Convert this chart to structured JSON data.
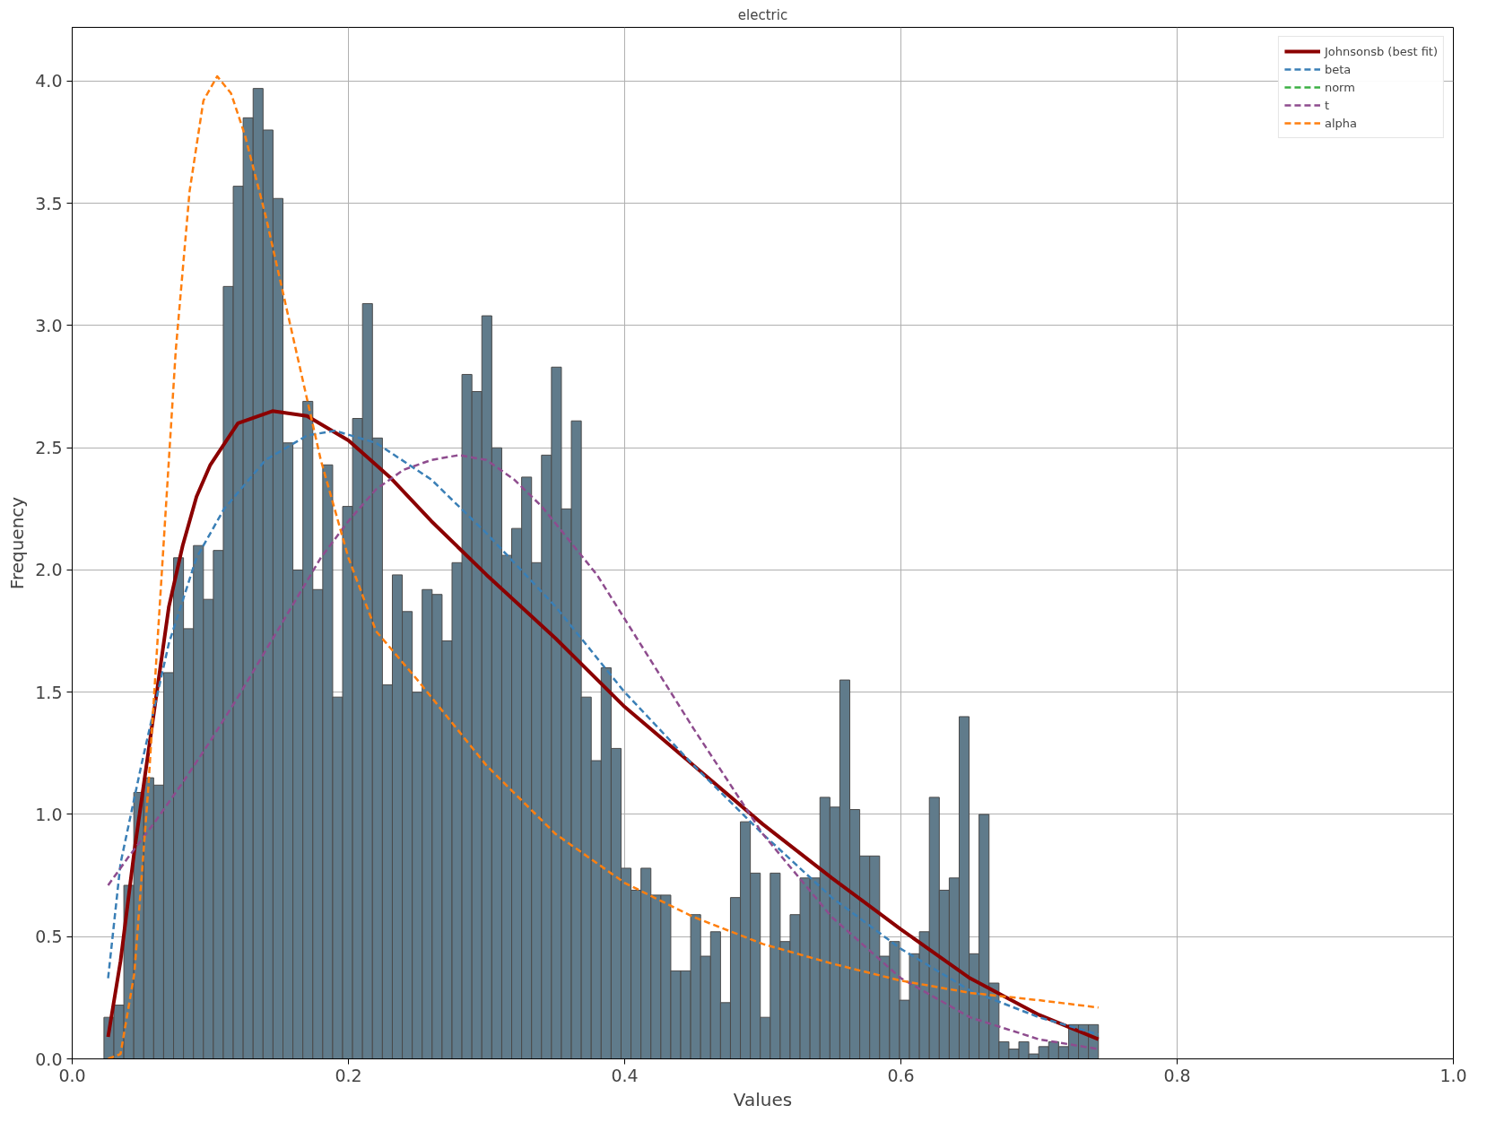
{
  "chart_data": {
    "type": "histogram",
    "title": "electric",
    "xlabel": "Values",
    "ylabel": "Frequency",
    "bins": [
      0.023,
      0.0302,
      0.0374,
      0.0446,
      0.0518,
      0.059,
      0.0662,
      0.0734,
      0.0806,
      0.0878,
      0.095,
      0.1022,
      0.1094,
      0.1166,
      0.1238,
      0.131,
      0.1382,
      0.1454,
      0.1526,
      0.1598,
      0.167,
      0.1742,
      0.1814,
      0.1886,
      0.1958,
      0.203,
      0.2102,
      0.2174,
      0.2246,
      0.2318,
      0.239,
      0.2462,
      0.2534,
      0.2606,
      0.2678,
      0.275,
      0.2822,
      0.2894,
      0.2966,
      0.3038,
      0.311,
      0.3182,
      0.3254,
      0.3326,
      0.3398,
      0.347,
      0.3542,
      0.3614,
      0.3686,
      0.3758,
      0.383,
      0.3902,
      0.3974,
      0.4046,
      0.4118,
      0.419,
      0.4262,
      0.4334,
      0.4406,
      0.4478,
      0.455,
      0.4622,
      0.4694,
      0.4766,
      0.4838,
      0.491,
      0.4982,
      0.5054,
      0.5126,
      0.5198,
      0.527,
      0.5342,
      0.5414,
      0.5486,
      0.5558,
      0.563,
      0.5702,
      0.5774,
      0.5846,
      0.5918,
      0.599,
      0.6062,
      0.6134,
      0.6206,
      0.6278,
      0.635,
      0.6422,
      0.6494,
      0.6566,
      0.6638,
      0.671,
      0.6782,
      0.6854,
      0.6926,
      0.6998,
      0.707,
      0.7142,
      0.7214,
      0.7286,
      0.7358,
      0.743
    ],
    "values": [
      0.17,
      0.22,
      0.71,
      1.09,
      1.15,
      1.12,
      1.58,
      2.05,
      1.76,
      2.1,
      1.88,
      2.08,
      3.16,
      3.57,
      3.85,
      3.97,
      3.8,
      3.52,
      2.52,
      2.0,
      2.69,
      1.92,
      2.43,
      1.48,
      2.26,
      2.62,
      3.09,
      2.54,
      1.53,
      1.98,
      1.83,
      1.5,
      1.92,
      1.9,
      1.71,
      2.03,
      2.8,
      2.73,
      3.04,
      2.5,
      2.06,
      2.17,
      2.38,
      2.03,
      2.47,
      2.83,
      2.25,
      2.61,
      1.48,
      1.22,
      1.6,
      1.27,
      0.78,
      0.69,
      0.78,
      0.67,
      0.67,
      0.36,
      0.36,
      0.59,
      0.42,
      0.52,
      0.23,
      0.66,
      0.97,
      0.76,
      0.17,
      0.76,
      0.48,
      0.59,
      0.74,
      0.74,
      1.07,
      1.03,
      1.55,
      1.02,
      0.83,
      0.83,
      0.42,
      0.48,
      0.24,
      0.43,
      0.52,
      1.07,
      0.69,
      0.74,
      1.4,
      0.43,
      1.0,
      0.31,
      0.07,
      0.04,
      0.07,
      0.02,
      0.05,
      0.07,
      0.05,
      0.14,
      0.14,
      0.14
    ],
    "color": "#607b8b",
    "series": [
      {
        "name": "Johnsonsb (best fit)",
        "type": "line",
        "line_style": "solid",
        "color": "#8b0000",
        "x": [
          0.026,
          0.035,
          0.045,
          0.06,
          0.07,
          0.08,
          0.09,
          0.1,
          0.12,
          0.145,
          0.17,
          0.2,
          0.23,
          0.26,
          0.3,
          0.35,
          0.4,
          0.45,
          0.5,
          0.55,
          0.6,
          0.65,
          0.7,
          0.743
        ],
        "values": [
          0.09,
          0.4,
          0.85,
          1.45,
          1.85,
          2.1,
          2.3,
          2.43,
          2.6,
          2.65,
          2.63,
          2.53,
          2.38,
          2.2,
          1.98,
          1.72,
          1.44,
          1.2,
          0.96,
          0.74,
          0.53,
          0.33,
          0.18,
          0.08
        ]
      },
      {
        "name": "beta",
        "type": "line",
        "line_style": "dashed",
        "color": "#3a7fb6",
        "x": [
          0.026,
          0.035,
          0.05,
          0.07,
          0.09,
          0.11,
          0.14,
          0.17,
          0.19,
          0.22,
          0.26,
          0.3,
          0.35,
          0.4,
          0.45,
          0.5,
          0.55,
          0.6,
          0.65,
          0.7,
          0.743
        ],
        "values": [
          0.33,
          0.8,
          1.2,
          1.7,
          2.05,
          2.25,
          2.45,
          2.55,
          2.57,
          2.52,
          2.37,
          2.15,
          1.85,
          1.5,
          1.2,
          0.92,
          0.66,
          0.45,
          0.28,
          0.17,
          0.1
        ]
      },
      {
        "name": "norm",
        "type": "line",
        "line_style": "dashed",
        "color": "#3cb044"
      },
      {
        "name": "t",
        "type": "line",
        "line_style": "dashed",
        "color": "#8e4c8e",
        "x": [
          0.026,
          0.04,
          0.06,
          0.08,
          0.1,
          0.12,
          0.14,
          0.16,
          0.18,
          0.2,
          0.22,
          0.24,
          0.26,
          0.28,
          0.3,
          0.32,
          0.34,
          0.36,
          0.38,
          0.4,
          0.45,
          0.5,
          0.55,
          0.6,
          0.65,
          0.7,
          0.743
        ],
        "values": [
          0.71,
          0.82,
          0.97,
          1.13,
          1.3,
          1.48,
          1.67,
          1.86,
          2.05,
          2.2,
          2.33,
          2.41,
          2.45,
          2.47,
          2.45,
          2.37,
          2.26,
          2.12,
          1.98,
          1.8,
          1.35,
          0.92,
          0.58,
          0.33,
          0.17,
          0.08,
          0.04
        ]
      },
      {
        "name": "alpha",
        "type": "line",
        "line_style": "dashed",
        "color": "#ff7f0e",
        "x": [
          0.026,
          0.035,
          0.045,
          0.055,
          0.065,
          0.075,
          0.085,
          0.095,
          0.105,
          0.115,
          0.125,
          0.14,
          0.16,
          0.18,
          0.2,
          0.22,
          0.25,
          0.3,
          0.35,
          0.4,
          0.45,
          0.5,
          0.55,
          0.6,
          0.65,
          0.7,
          0.743
        ],
        "values": [
          0.0,
          0.02,
          0.35,
          1.1,
          2.0,
          2.9,
          3.55,
          3.92,
          4.02,
          3.95,
          3.78,
          3.45,
          2.95,
          2.45,
          2.05,
          1.75,
          1.55,
          1.2,
          0.92,
          0.72,
          0.58,
          0.47,
          0.39,
          0.32,
          0.27,
          0.24,
          0.21
        ]
      }
    ],
    "xlim": [
      0,
      1
    ],
    "ylim": [
      0,
      4.22
    ],
    "xticks": [
      {
        "value": 0,
        "label": "0.0"
      },
      {
        "value": 0.2,
        "label": "0.2"
      },
      {
        "value": 0.4,
        "label": "0.4"
      },
      {
        "value": 0.6,
        "label": "0.6"
      },
      {
        "value": 0.8,
        "label": "0.8"
      },
      {
        "value": 1,
        "label": "1.0"
      }
    ],
    "yticks": [
      {
        "value": 0,
        "label": "0.0"
      },
      {
        "value": 0.5,
        "label": "0.5"
      },
      {
        "value": 1,
        "label": "1.0"
      },
      {
        "value": 1.5,
        "label": "1.5"
      },
      {
        "value": 2,
        "label": "2.0"
      },
      {
        "value": 2.5,
        "label": "2.5"
      },
      {
        "value": 3,
        "label": "3.0"
      },
      {
        "value": 3.5,
        "label": "3.5"
      },
      {
        "value": 4,
        "label": "4.0"
      }
    ],
    "grid": true,
    "legend": "top right"
  }
}
